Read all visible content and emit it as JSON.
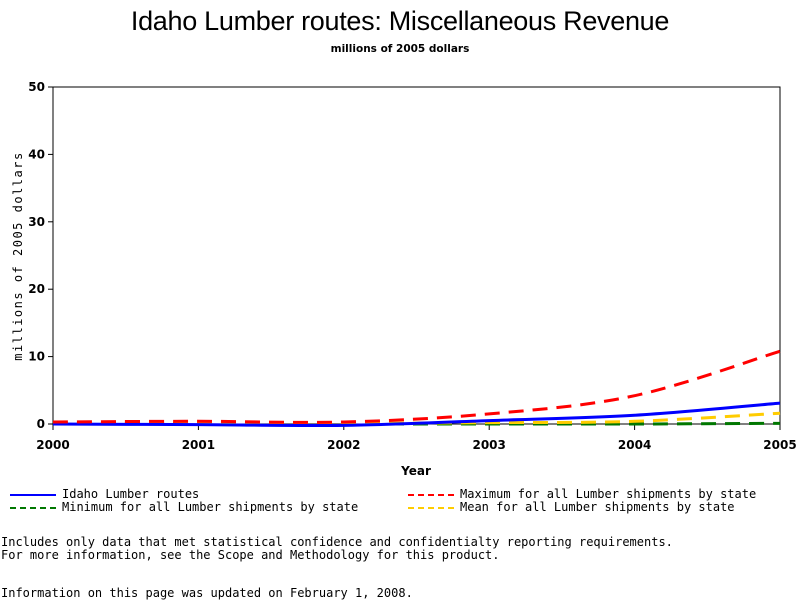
{
  "chart_data": {
    "type": "line",
    "title": "Idaho Lumber routes: Miscellaneous Revenue",
    "subtitle": "millions of 2005 dollars",
    "xlabel": "Year",
    "ylabel": "millions of 2005 dollars",
    "xlim": [
      2000,
      2005
    ],
    "ylim": [
      0,
      50
    ],
    "x_ticks": [
      "2000",
      "2001",
      "2002",
      "2003",
      "2004",
      "2005"
    ],
    "y_ticks": [
      "0",
      "10",
      "20",
      "30",
      "40",
      "50"
    ],
    "grid": false,
    "legend_position": "bottom",
    "x": [
      2000,
      2001,
      2002,
      2003,
      2004,
      2005
    ],
    "series": [
      {
        "name": "Idaho Lumber routes",
        "color": "#0000ff",
        "style": "solid",
        "values": [
          0.0,
          -0.1,
          -0.2,
          0.5,
          1.3,
          3.1
        ]
      },
      {
        "name": "Maximum for all Lumber shipments by state",
        "color": "#ff0000",
        "style": "dashed",
        "values": [
          0.3,
          0.4,
          0.3,
          1.5,
          4.2,
          10.8
        ]
      },
      {
        "name": "Minimum for all Lumber shipments by state",
        "color": "#007700",
        "style": "dashed",
        "values": [
          0.0,
          0.0,
          0.0,
          0.0,
          0.0,
          0.1
        ]
      },
      {
        "name": "Mean for all Lumber shipments by state",
        "color": "#ffcc00",
        "style": "dashed",
        "values": [
          0.1,
          0.1,
          0.1,
          0.2,
          0.4,
          1.6
        ]
      }
    ]
  },
  "notes": {
    "line1": "Includes only data that met statistical confidence and confidentialty reporting requirements.",
    "line2": "For more information, see the Scope and Methodology for this product.",
    "updated": "Information on this page was updated on February 1, 2008."
  }
}
